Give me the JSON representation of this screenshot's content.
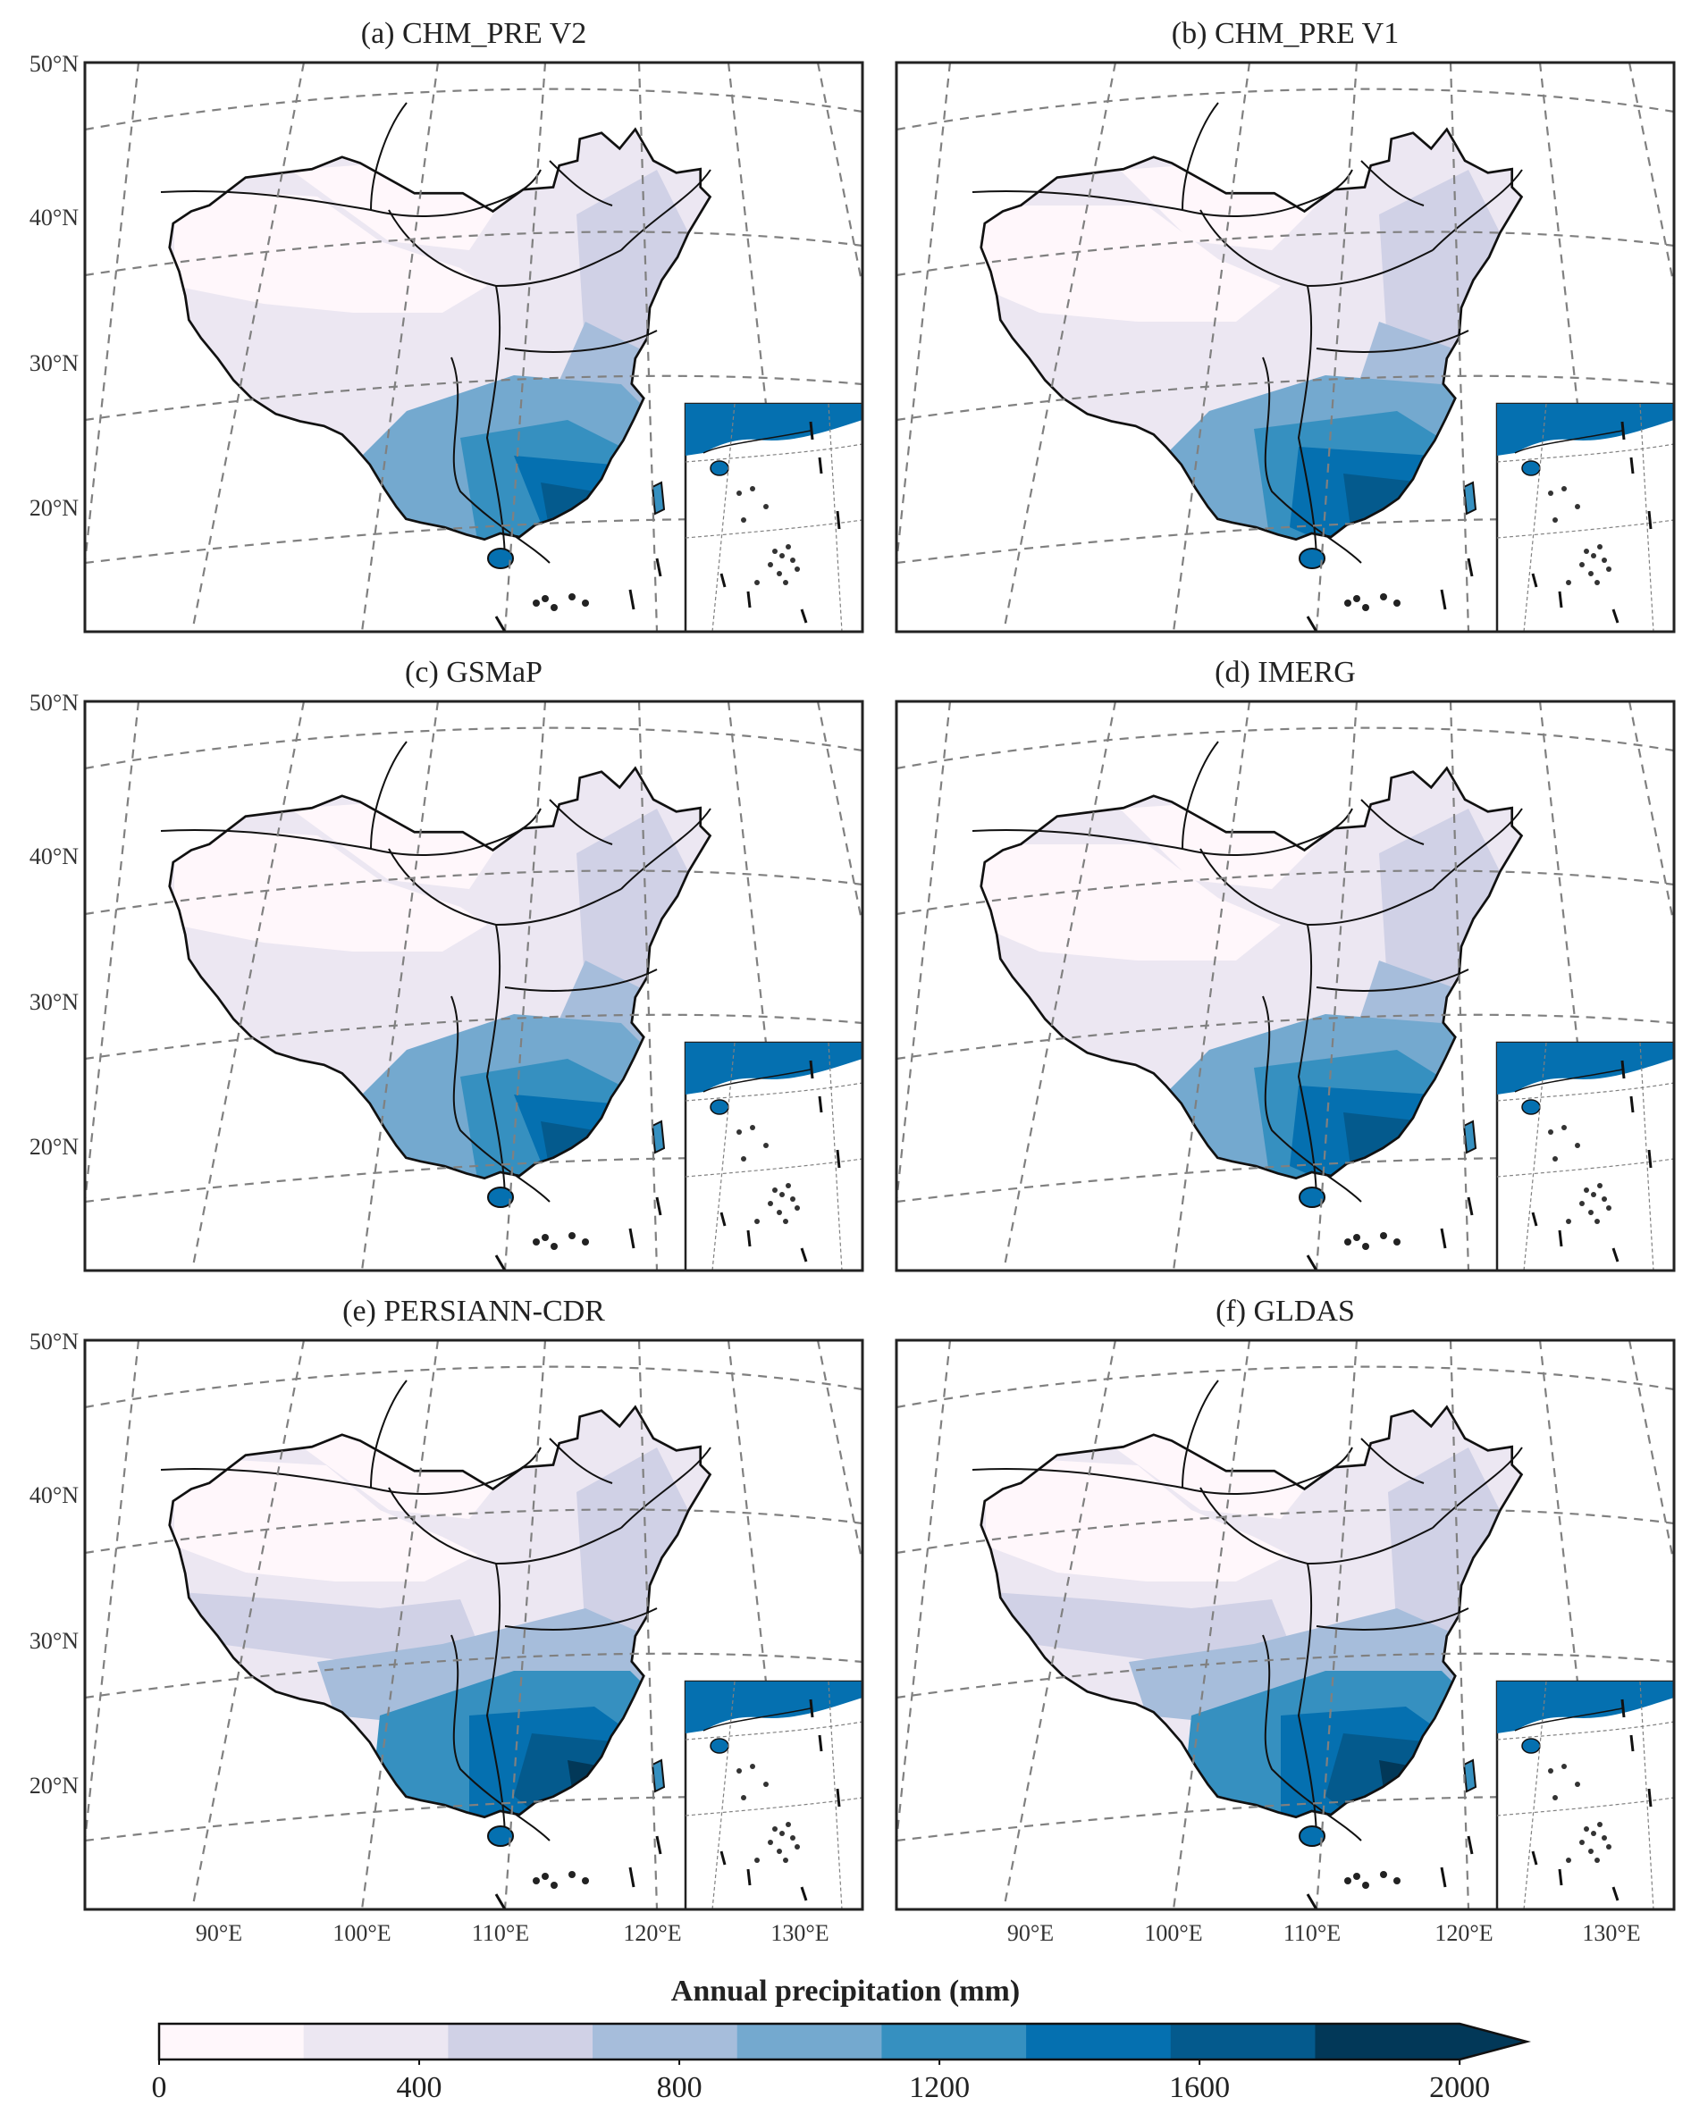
{
  "panels": [
    {
      "title": "(a) CHM_PRE V2",
      "shade": 0
    },
    {
      "title": "(b) CHM_PRE V1",
      "shade": 1
    },
    {
      "title": "(c) GSMaP",
      "shade": 0
    },
    {
      "title": "(d) IMERG",
      "shade": 1
    },
    {
      "title": "(e) PERSIANN-CDR",
      "shade": 2
    },
    {
      "title": "(f) GLDAS",
      "shade": 2
    }
  ],
  "lat_labels": [
    "50°N",
    "40°N",
    "30°N",
    "20°N"
  ],
  "lon_labels": [
    "90°E",
    "100°E",
    "110°E",
    "120°E",
    "130°E"
  ],
  "colorbar": {
    "title": "Annual precipitation (mm)",
    "min": 0,
    "max": 2000,
    "step": 200,
    "tick_labels": [
      "0",
      "400",
      "800",
      "1200",
      "1600",
      "2000"
    ],
    "extend": "max",
    "colors": [
      "#fff7fb",
      "#ece7f2",
      "#d0d1e6",
      "#a6bddb",
      "#74a9cf",
      "#3690c0",
      "#0570b0",
      "#045a8d",
      "#023858"
    ]
  },
  "colors": {
    "graticule": "#808080",
    "frame": "#222222",
    "outline": "#111111"
  }
}
